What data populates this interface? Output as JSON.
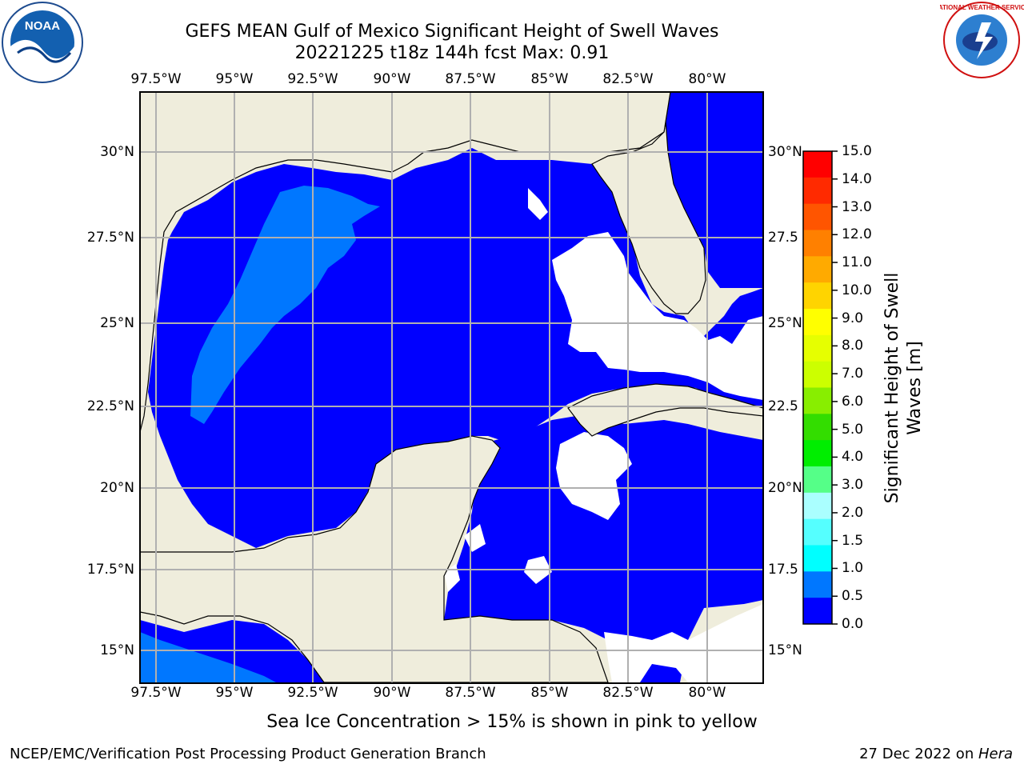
{
  "title": {
    "line1": "GEFS MEAN Gulf of Mexico Significant Height of Swell Waves",
    "line2": "20221225 t18z 144h fcst   Max: 0.91"
  },
  "map": {
    "lon_labels": [
      "97.5°W",
      "95°W",
      "92.5°W",
      "90°W",
      "87.5°W",
      "85°W",
      "82.5°W",
      "80°W"
    ],
    "lat_labels_left": [
      "30°N",
      "27.5°N",
      "25°N",
      "22.5°N",
      "20°N",
      "17.5°N",
      "15°N"
    ],
    "lat_labels_right": [
      "30°N",
      "27.5",
      "25°N",
      "22.5",
      "20°N",
      "17.5",
      "15°N"
    ],
    "colors": {
      "land": "#efeddc",
      "ocean_low": "#0000ff",
      "ocean_mid": "#0077ff",
      "grid": "#b0b0b0",
      "no_data": "#ffffff"
    }
  },
  "colorbar": {
    "title_line1": "Significant Height of Swell",
    "title_line2": "Waves [m]",
    "ticks": [
      "15.0",
      "14.0",
      "13.0",
      "12.0",
      "11.0",
      "10.0",
      "9.0",
      "8.0",
      "7.0",
      "6.0",
      "5.0",
      "4.0",
      "3.0",
      "2.0",
      "1.5",
      "1.0",
      "0.5",
      "0.0"
    ],
    "bin_colors": [
      "#ff0000",
      "#ff2a00",
      "#ff5500",
      "#ff8000",
      "#ffaa00",
      "#ffd400",
      "#ffff00",
      "#e6ff00",
      "#ccff00",
      "#88ee00",
      "#33dd00",
      "#00ee00",
      "#55ff88",
      "#aaffff",
      "#55ffff",
      "#00ffff",
      "#0077ff",
      "#0000ff"
    ]
  },
  "note": "Sea Ice Concentration > 15% is shown in pink to yellow",
  "footer": {
    "left": "NCEP/EMC/Verification Post Processing Product Generation Branch",
    "right_date": "27 Dec 2022 on ",
    "right_host": "Hera"
  },
  "logos": {
    "noaa_text": "NOAA",
    "nws_text": "NATIONAL WEATHER SERVICE"
  }
}
